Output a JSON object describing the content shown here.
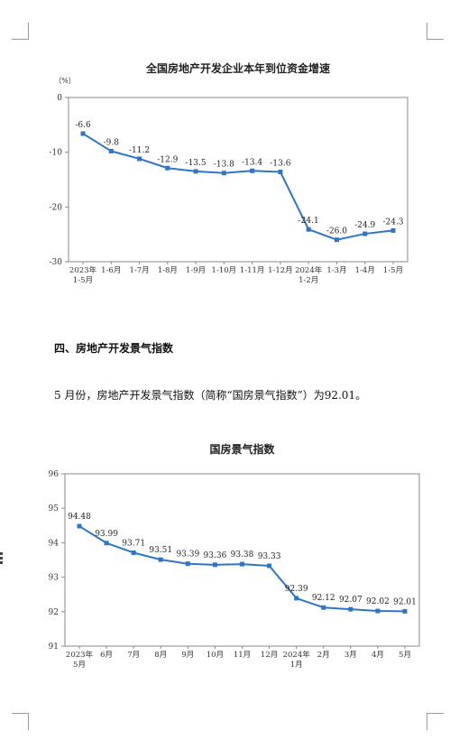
{
  "section": {
    "heading": "四、房地产开发景气指数",
    "paragraph": "5 月份，房地产开发景气指数（简称“国房景气指数”）为92.01。"
  },
  "chart_data": [
    {
      "type": "line",
      "title": "全国房地产开发企业本年到位资金增速",
      "unit_label": "（%）",
      "categories": [
        [
          "2023年",
          "1-5月"
        ],
        [
          "1-6月"
        ],
        [
          "1-7月"
        ],
        [
          "1-8月"
        ],
        [
          "1-9月"
        ],
        [
          "1-10月"
        ],
        [
          "1-11月"
        ],
        [
          "1-12月"
        ],
        [
          "2024年",
          "1-2月"
        ],
        [
          "1-3月"
        ],
        [
          "1-4月"
        ],
        [
          "1-5月"
        ]
      ],
      "values": [
        -6.6,
        -9.8,
        -11.2,
        -12.9,
        -13.5,
        -13.8,
        -13.4,
        -13.6,
        -24.1,
        -26.0,
        -24.9,
        -24.3
      ],
      "value_labels": [
        "-6.6",
        "-9.8",
        "-11.2",
        "-12.9",
        "-13.5",
        "-13.8",
        "-13.4",
        "-13.6",
        "-24.1",
        "-26.0",
        "-24.9",
        "-24.3"
      ],
      "ylim": [
        -30,
        0
      ],
      "yticks": [
        0,
        -10,
        -20,
        -30
      ],
      "ytick_labels": [
        "0",
        "-10",
        "-20",
        "-30"
      ],
      "line_color": "#2e75c6",
      "grid": false
    },
    {
      "type": "line",
      "title": "国房景气指数",
      "categories": [
        [
          "2023年",
          "5月"
        ],
        [
          "6月"
        ],
        [
          "7月"
        ],
        [
          "8月"
        ],
        [
          "9月"
        ],
        [
          "10月"
        ],
        [
          "11月"
        ],
        [
          "12月"
        ],
        [
          "2024年",
          "1月"
        ],
        [
          "2月"
        ],
        [
          "3月"
        ],
        [
          "4月"
        ],
        [
          "5月"
        ]
      ],
      "values": [
        94.48,
        93.99,
        93.71,
        93.51,
        93.39,
        93.36,
        93.38,
        93.33,
        92.39,
        92.12,
        92.07,
        92.02,
        92.01
      ],
      "value_labels": [
        "94.48",
        "93.99",
        "93.71",
        "93.51",
        "93.39",
        "93.36",
        "93.38",
        "93.33",
        "92.39",
        "92.12",
        "92.07",
        "92.02",
        "92.01"
      ],
      "ylim": [
        91,
        96
      ],
      "yticks": [
        96,
        95,
        94,
        93,
        92,
        91
      ],
      "ytick_labels": [
        "96",
        "95",
        "94",
        "93",
        "92",
        "91"
      ],
      "line_color": "#2e75c6",
      "grid": false
    }
  ]
}
